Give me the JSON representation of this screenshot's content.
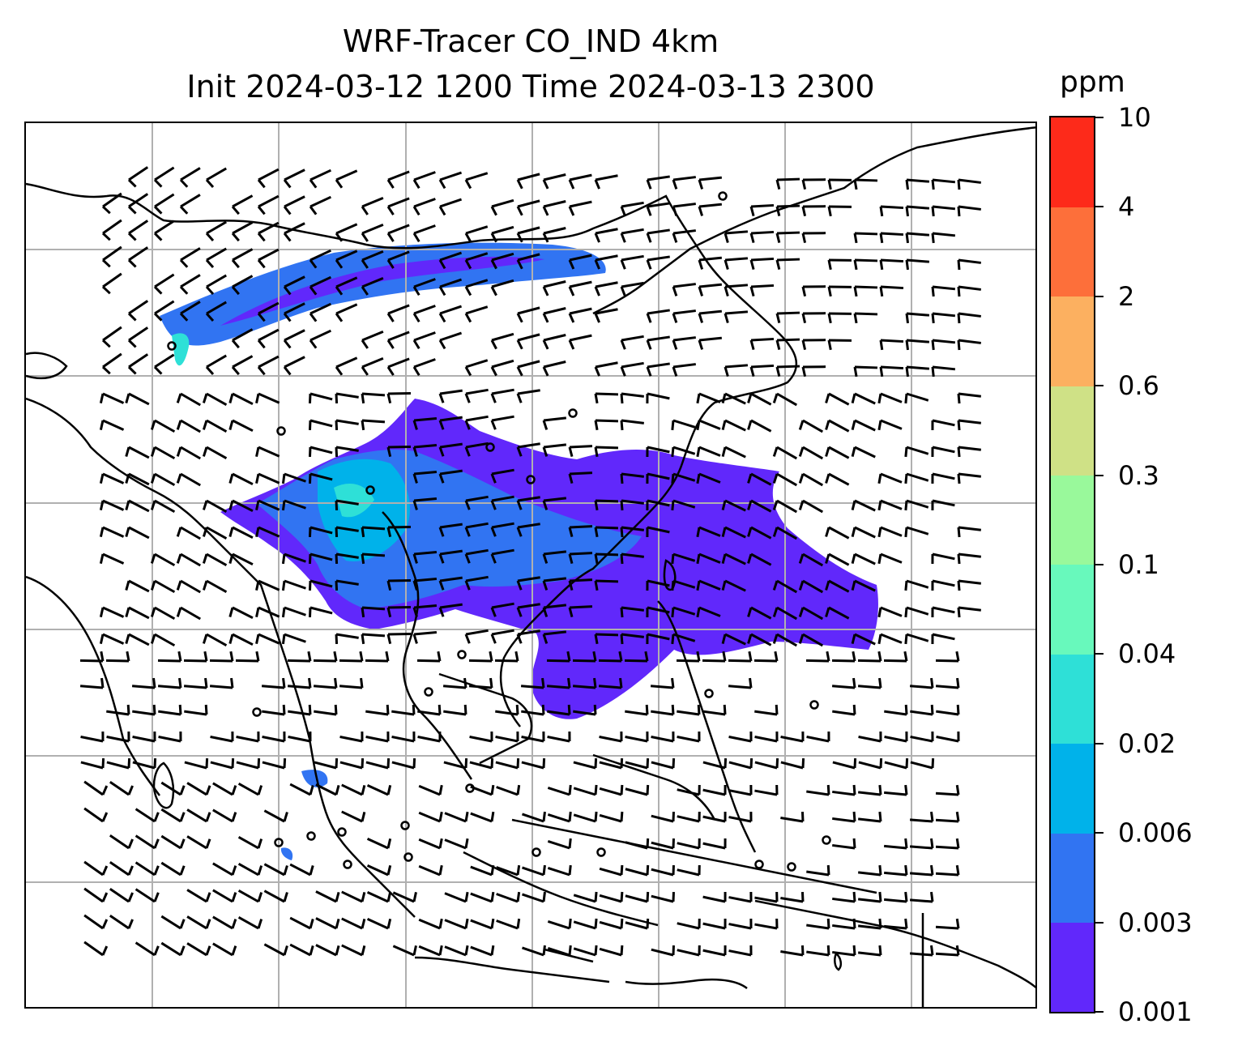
{
  "title_line1": "WRF-Tracer CO_IND 4km",
  "title_line2": "Init 2024-03-12 1200 Time 2024-03-13 2300",
  "colorbar": {
    "unit": "ppm",
    "ticks": [
      "0.001",
      "0.003",
      "0.006",
      "0.02",
      "0.04",
      "0.1",
      "0.3",
      "0.6",
      "2",
      "4",
      "10"
    ],
    "colors": [
      "#6128fb",
      "#3174f2",
      "#00b2ea",
      "#2ee0d7",
      "#68f9bc",
      "#99f99b",
      "#cfe186",
      "#fcb060",
      "#fd6f3a",
      "#fd2a1a"
    ]
  },
  "map": {
    "gridlines": true,
    "coastline_color": "#000000",
    "gridline_color": "#b0b0b0",
    "wind_barbs": true,
    "plume_levels_present": [
      "0.001",
      "0.003",
      "0.006",
      "0.02",
      "0.04"
    ]
  }
}
